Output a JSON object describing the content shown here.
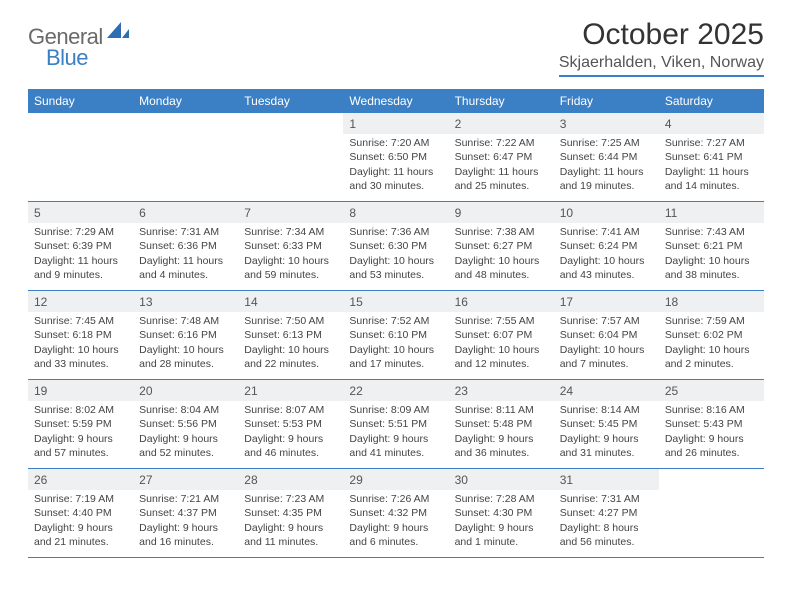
{
  "logo": {
    "part1": "General",
    "part2": "Blue"
  },
  "title": "October 2025",
  "location": "Skjaerhalden, Viken, Norway",
  "colors": {
    "accent": "#3b7fc4",
    "header_text": "#ffffff",
    "daynum_bg": "#eef0f2",
    "body_text": "#444444",
    "title_text": "#333333"
  },
  "weekdays": [
    "Sunday",
    "Monday",
    "Tuesday",
    "Wednesday",
    "Thursday",
    "Friday",
    "Saturday"
  ],
  "weeks": [
    [
      {
        "n": "",
        "sr": "",
        "ss": "",
        "dl": ""
      },
      {
        "n": "",
        "sr": "",
        "ss": "",
        "dl": ""
      },
      {
        "n": "",
        "sr": "",
        "ss": "",
        "dl": ""
      },
      {
        "n": "1",
        "sr": "Sunrise: 7:20 AM",
        "ss": "Sunset: 6:50 PM",
        "dl": "Daylight: 11 hours and 30 minutes."
      },
      {
        "n": "2",
        "sr": "Sunrise: 7:22 AM",
        "ss": "Sunset: 6:47 PM",
        "dl": "Daylight: 11 hours and 25 minutes."
      },
      {
        "n": "3",
        "sr": "Sunrise: 7:25 AM",
        "ss": "Sunset: 6:44 PM",
        "dl": "Daylight: 11 hours and 19 minutes."
      },
      {
        "n": "4",
        "sr": "Sunrise: 7:27 AM",
        "ss": "Sunset: 6:41 PM",
        "dl": "Daylight: 11 hours and 14 minutes."
      }
    ],
    [
      {
        "n": "5",
        "sr": "Sunrise: 7:29 AM",
        "ss": "Sunset: 6:39 PM",
        "dl": "Daylight: 11 hours and 9 minutes."
      },
      {
        "n": "6",
        "sr": "Sunrise: 7:31 AM",
        "ss": "Sunset: 6:36 PM",
        "dl": "Daylight: 11 hours and 4 minutes."
      },
      {
        "n": "7",
        "sr": "Sunrise: 7:34 AM",
        "ss": "Sunset: 6:33 PM",
        "dl": "Daylight: 10 hours and 59 minutes."
      },
      {
        "n": "8",
        "sr": "Sunrise: 7:36 AM",
        "ss": "Sunset: 6:30 PM",
        "dl": "Daylight: 10 hours and 53 minutes."
      },
      {
        "n": "9",
        "sr": "Sunrise: 7:38 AM",
        "ss": "Sunset: 6:27 PM",
        "dl": "Daylight: 10 hours and 48 minutes."
      },
      {
        "n": "10",
        "sr": "Sunrise: 7:41 AM",
        "ss": "Sunset: 6:24 PM",
        "dl": "Daylight: 10 hours and 43 minutes."
      },
      {
        "n": "11",
        "sr": "Sunrise: 7:43 AM",
        "ss": "Sunset: 6:21 PM",
        "dl": "Daylight: 10 hours and 38 minutes."
      }
    ],
    [
      {
        "n": "12",
        "sr": "Sunrise: 7:45 AM",
        "ss": "Sunset: 6:18 PM",
        "dl": "Daylight: 10 hours and 33 minutes."
      },
      {
        "n": "13",
        "sr": "Sunrise: 7:48 AM",
        "ss": "Sunset: 6:16 PM",
        "dl": "Daylight: 10 hours and 28 minutes."
      },
      {
        "n": "14",
        "sr": "Sunrise: 7:50 AM",
        "ss": "Sunset: 6:13 PM",
        "dl": "Daylight: 10 hours and 22 minutes."
      },
      {
        "n": "15",
        "sr": "Sunrise: 7:52 AM",
        "ss": "Sunset: 6:10 PM",
        "dl": "Daylight: 10 hours and 17 minutes."
      },
      {
        "n": "16",
        "sr": "Sunrise: 7:55 AM",
        "ss": "Sunset: 6:07 PM",
        "dl": "Daylight: 10 hours and 12 minutes."
      },
      {
        "n": "17",
        "sr": "Sunrise: 7:57 AM",
        "ss": "Sunset: 6:04 PM",
        "dl": "Daylight: 10 hours and 7 minutes."
      },
      {
        "n": "18",
        "sr": "Sunrise: 7:59 AM",
        "ss": "Sunset: 6:02 PM",
        "dl": "Daylight: 10 hours and 2 minutes."
      }
    ],
    [
      {
        "n": "19",
        "sr": "Sunrise: 8:02 AM",
        "ss": "Sunset: 5:59 PM",
        "dl": "Daylight: 9 hours and 57 minutes."
      },
      {
        "n": "20",
        "sr": "Sunrise: 8:04 AM",
        "ss": "Sunset: 5:56 PM",
        "dl": "Daylight: 9 hours and 52 minutes."
      },
      {
        "n": "21",
        "sr": "Sunrise: 8:07 AM",
        "ss": "Sunset: 5:53 PM",
        "dl": "Daylight: 9 hours and 46 minutes."
      },
      {
        "n": "22",
        "sr": "Sunrise: 8:09 AM",
        "ss": "Sunset: 5:51 PM",
        "dl": "Daylight: 9 hours and 41 minutes."
      },
      {
        "n": "23",
        "sr": "Sunrise: 8:11 AM",
        "ss": "Sunset: 5:48 PM",
        "dl": "Daylight: 9 hours and 36 minutes."
      },
      {
        "n": "24",
        "sr": "Sunrise: 8:14 AM",
        "ss": "Sunset: 5:45 PM",
        "dl": "Daylight: 9 hours and 31 minutes."
      },
      {
        "n": "25",
        "sr": "Sunrise: 8:16 AM",
        "ss": "Sunset: 5:43 PM",
        "dl": "Daylight: 9 hours and 26 minutes."
      }
    ],
    [
      {
        "n": "26",
        "sr": "Sunrise: 7:19 AM",
        "ss": "Sunset: 4:40 PM",
        "dl": "Daylight: 9 hours and 21 minutes."
      },
      {
        "n": "27",
        "sr": "Sunrise: 7:21 AM",
        "ss": "Sunset: 4:37 PM",
        "dl": "Daylight: 9 hours and 16 minutes."
      },
      {
        "n": "28",
        "sr": "Sunrise: 7:23 AM",
        "ss": "Sunset: 4:35 PM",
        "dl": "Daylight: 9 hours and 11 minutes."
      },
      {
        "n": "29",
        "sr": "Sunrise: 7:26 AM",
        "ss": "Sunset: 4:32 PM",
        "dl": "Daylight: 9 hours and 6 minutes."
      },
      {
        "n": "30",
        "sr": "Sunrise: 7:28 AM",
        "ss": "Sunset: 4:30 PM",
        "dl": "Daylight: 9 hours and 1 minute."
      },
      {
        "n": "31",
        "sr": "Sunrise: 7:31 AM",
        "ss": "Sunset: 4:27 PM",
        "dl": "Daylight: 8 hours and 56 minutes."
      },
      {
        "n": "",
        "sr": "",
        "ss": "",
        "dl": ""
      }
    ]
  ]
}
